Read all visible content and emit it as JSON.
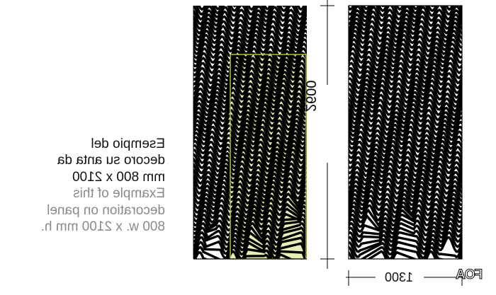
{
  "caption": {
    "italian": [
      "Esempio del",
      "decoro su anta da",
      "mm 800 x 2100"
    ],
    "english": [
      "Example of this",
      "decoration on panel",
      "800 w. x 2100 mm h."
    ]
  },
  "dimensions": {
    "height_label": "2600",
    "width_label": "1300"
  },
  "logo": "FOA",
  "colors": {
    "highlight_fill": "#e4efb8",
    "highlight_stroke": "#a8c43a",
    "wave": "#000000",
    "english_text": "#8a8a8a"
  }
}
